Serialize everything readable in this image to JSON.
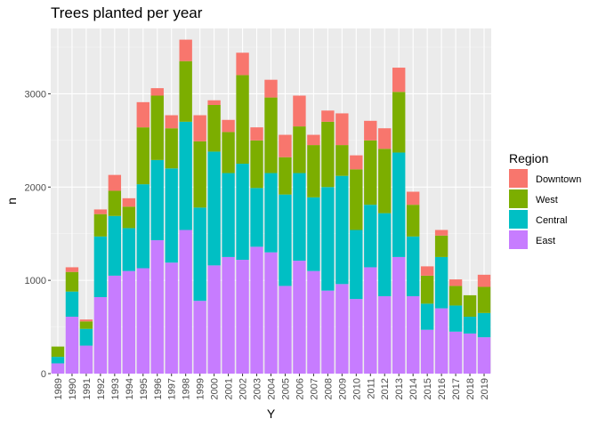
{
  "chart_data": {
    "type": "bar",
    "stacked": true,
    "title": "Trees planted per year",
    "xlabel": "Y",
    "ylabel": "n",
    "ylim": [
      0,
      3700
    ],
    "y_ticks": [
      0,
      1000,
      2000,
      3000
    ],
    "grid": true,
    "legend_placement": "right",
    "legend": {
      "title": "Region"
    },
    "categories": [
      "1989",
      "1990",
      "1991",
      "1992",
      "1993",
      "1994",
      "1995",
      "1996",
      "1997",
      "1998",
      "1999",
      "2000",
      "2001",
      "2002",
      "2003",
      "2004",
      "2005",
      "2006",
      "2007",
      "2008",
      "2009",
      "2010",
      "2011",
      "2012",
      "2013",
      "2014",
      "2015",
      "2016",
      "2017",
      "2018",
      "2019"
    ],
    "series": [
      {
        "name": "East",
        "color": "#C77CFF",
        "values": [
          110,
          610,
          300,
          820,
          1050,
          1100,
          1130,
          1430,
          1190,
          1540,
          780,
          1160,
          1250,
          1220,
          1360,
          1300,
          940,
          1210,
          1100,
          890,
          960,
          800,
          1140,
          830,
          1250,
          830,
          470,
          700,
          450,
          430,
          390
        ]
      },
      {
        "name": "Central",
        "color": "#00BFC4",
        "values": [
          70,
          270,
          180,
          650,
          640,
          460,
          900,
          860,
          1010,
          1160,
          1000,
          1220,
          900,
          1030,
          630,
          850,
          980,
          940,
          790,
          1110,
          1160,
          740,
          670,
          890,
          1120,
          640,
          280,
          550,
          280,
          180,
          260
        ]
      },
      {
        "name": "West",
        "color": "#7CAE00",
        "values": [
          110,
          210,
          80,
          240,
          270,
          230,
          610,
          690,
          430,
          650,
          710,
          500,
          440,
          950,
          510,
          810,
          400,
          500,
          560,
          700,
          330,
          650,
          690,
          690,
          650,
          340,
          300,
          230,
          210,
          230,
          280
        ]
      },
      {
        "name": "Downtown",
        "color": "#F8766D",
        "values": [
          0,
          50,
          20,
          50,
          170,
          90,
          270,
          80,
          140,
          230,
          280,
          50,
          130,
          240,
          140,
          190,
          240,
          330,
          110,
          120,
          340,
          150,
          210,
          220,
          260,
          140,
          100,
          60,
          70,
          0,
          130
        ]
      }
    ],
    "legend_order": [
      "Downtown",
      "West",
      "Central",
      "East"
    ]
  }
}
